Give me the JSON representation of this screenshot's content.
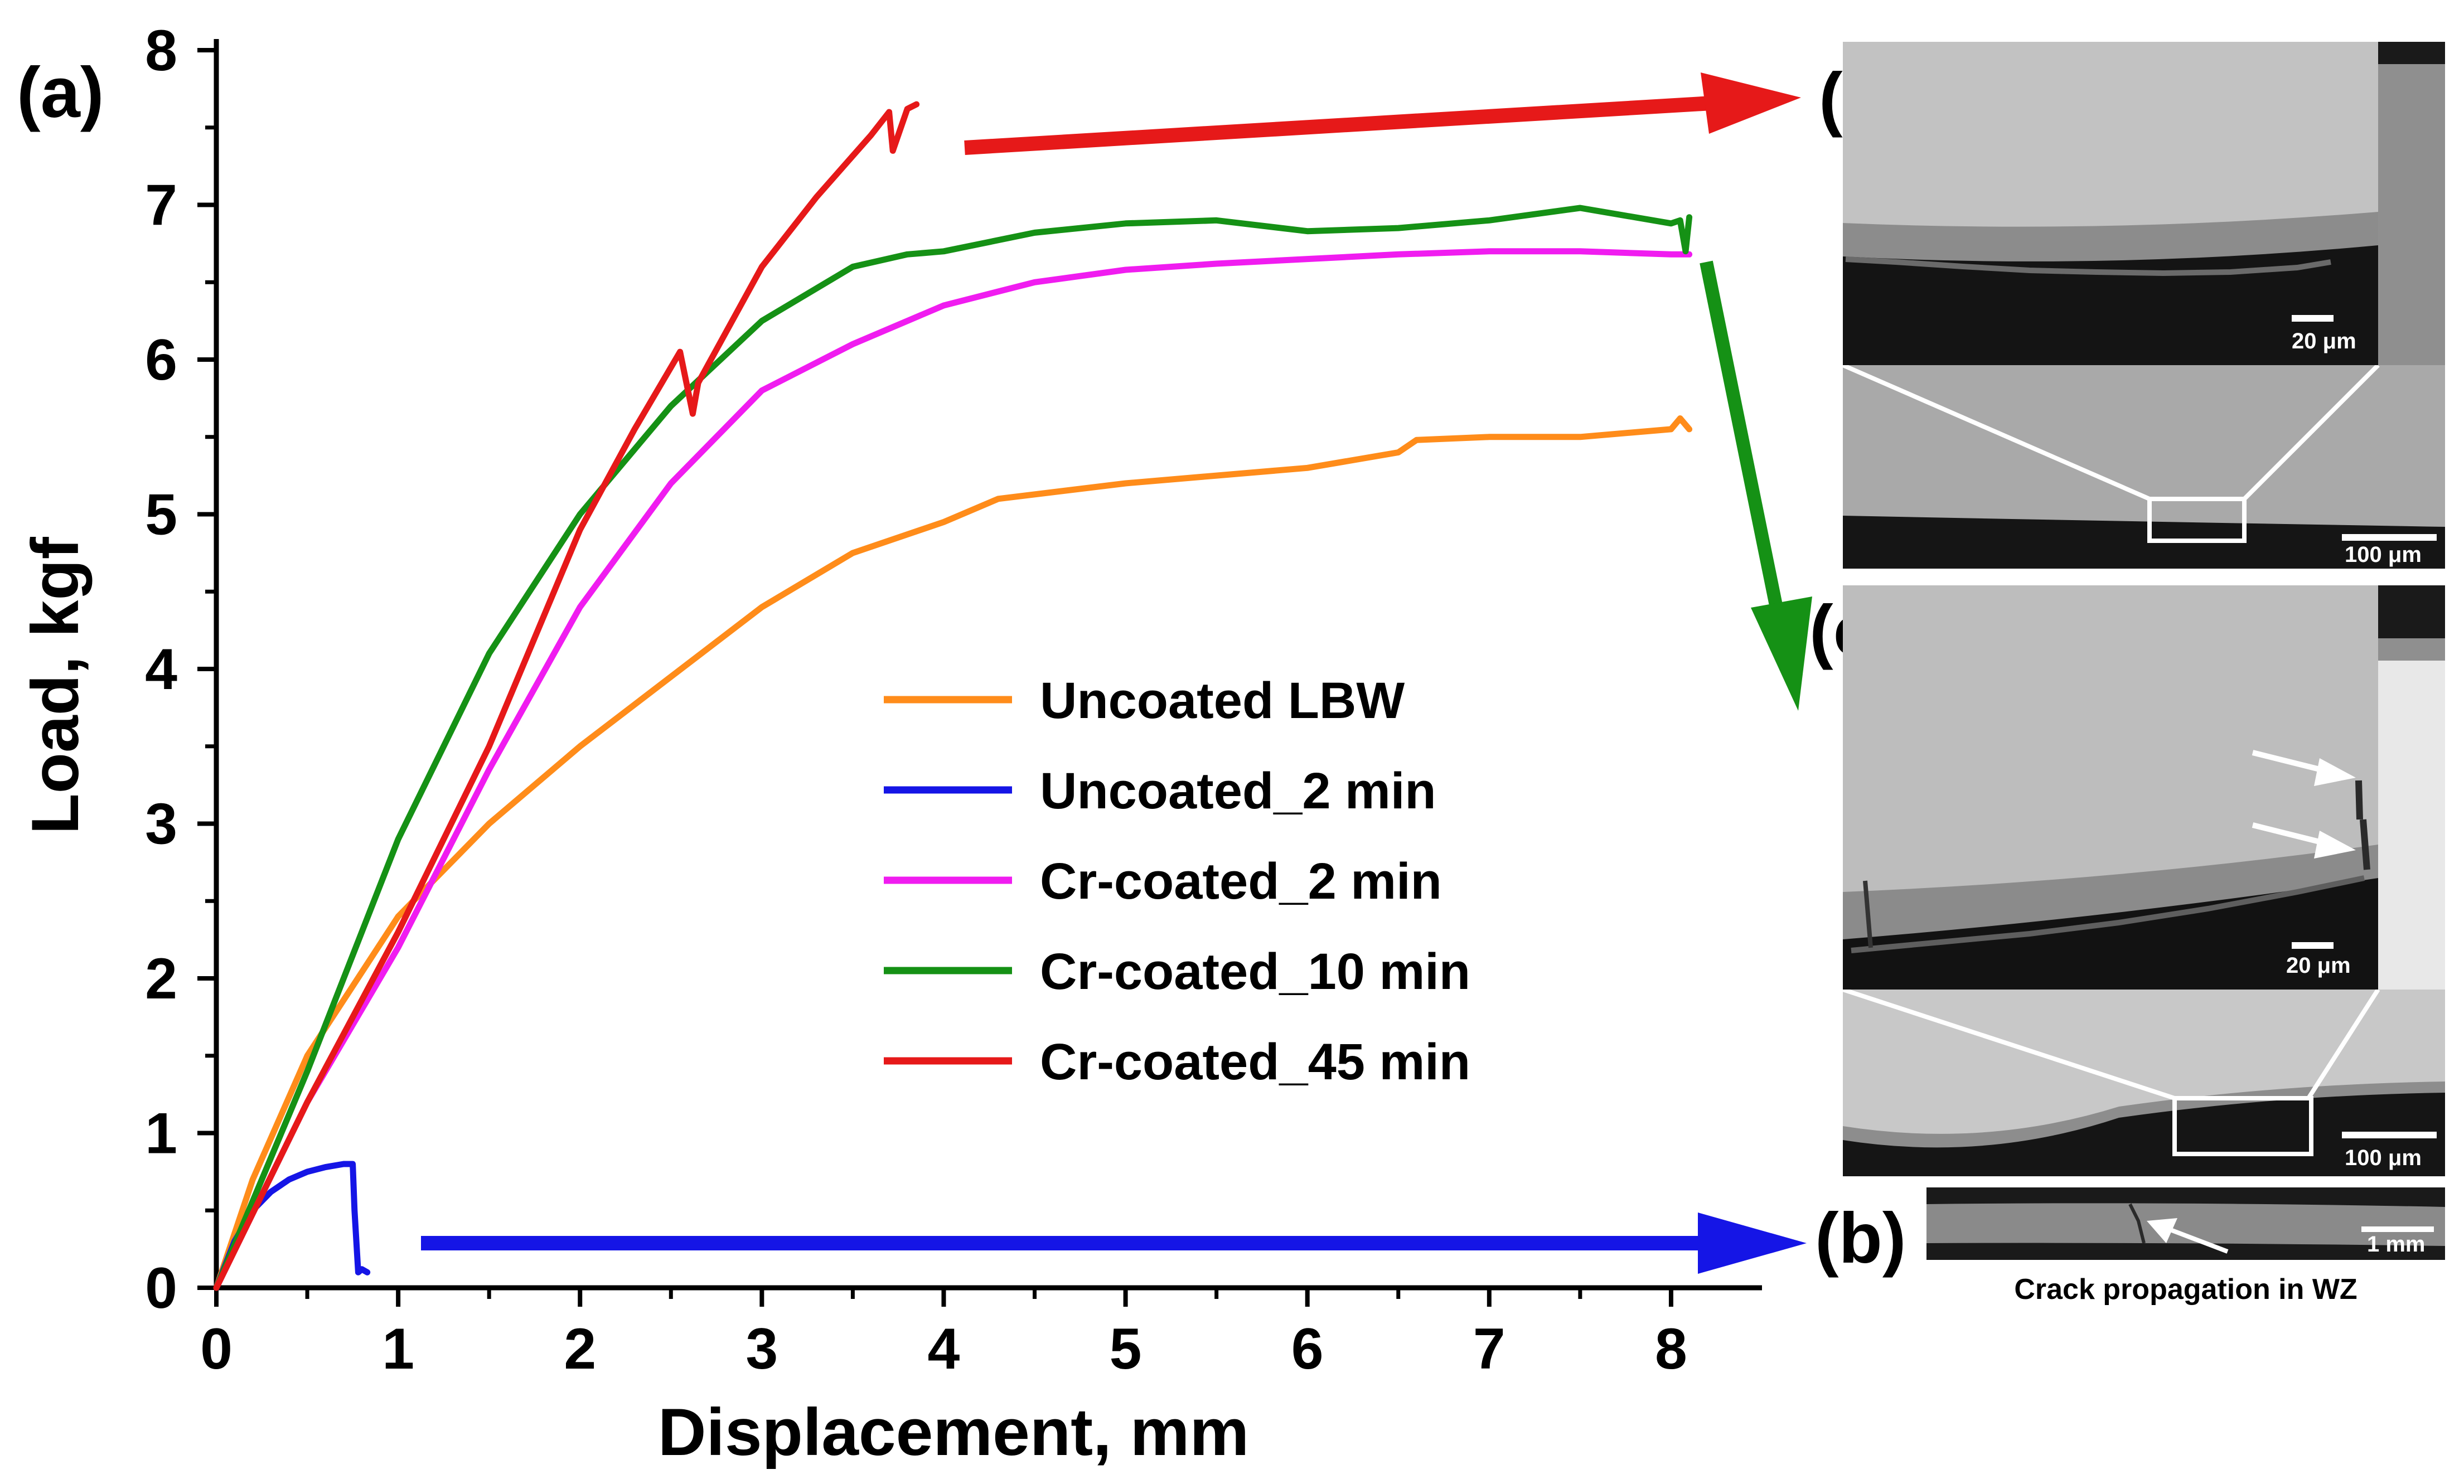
{
  "chart_data": {
    "type": "line",
    "panel_label": "(a)",
    "xlabel": "Displacement, mm",
    "ylabel": "Load, kgf",
    "xlim": [
      0,
      8.5
    ],
    "ylim": [
      0,
      8
    ],
    "x_ticks": [
      0,
      1,
      2,
      3,
      4,
      5,
      6,
      7,
      8
    ],
    "y_ticks": [
      0,
      1,
      2,
      3,
      4,
      5,
      6,
      7,
      8
    ],
    "x_tick_labels": [
      "0",
      "1",
      "2",
      "3",
      "4",
      "5",
      "6",
      "7",
      "8"
    ],
    "y_tick_labels": [
      "0",
      "1",
      "2",
      "3",
      "4",
      "5",
      "6",
      "7",
      "8"
    ],
    "grid": false,
    "legend_position": "center",
    "series": [
      {
        "name": "Uncoated LBW",
        "color": "#FF8C1A",
        "x": [
          0,
          0.2,
          0.5,
          1.0,
          1.5,
          2.0,
          2.5,
          3.0,
          3.5,
          4.0,
          4.3,
          5.0,
          5.5,
          6.0,
          6.5,
          6.6,
          7.0,
          7.5,
          8.0,
          8.05,
          8.1
        ],
        "y": [
          0,
          0.7,
          1.5,
          2.4,
          3.0,
          3.5,
          3.95,
          4.4,
          4.75,
          4.95,
          5.1,
          5.2,
          5.25,
          5.3,
          5.4,
          5.48,
          5.5,
          5.5,
          5.55,
          5.62,
          5.55
        ]
      },
      {
        "name": "Uncoated_2 min",
        "color": "#1515E6",
        "x": [
          0,
          0.1,
          0.2,
          0.3,
          0.4,
          0.5,
          0.6,
          0.7,
          0.75,
          0.76,
          0.78,
          0.8,
          0.83
        ],
        "y": [
          0,
          0.3,
          0.5,
          0.62,
          0.7,
          0.75,
          0.78,
          0.8,
          0.8,
          0.5,
          0.1,
          0.12,
          0.1
        ]
      },
      {
        "name": "Cr-coated_2 min",
        "color": "#F01CF0",
        "x": [
          0,
          0.5,
          1.0,
          1.5,
          2.0,
          2.5,
          3.0,
          3.5,
          4.0,
          4.5,
          5.0,
          5.5,
          6.0,
          6.5,
          7.0,
          7.5,
          8.0,
          8.1
        ],
        "y": [
          0,
          1.2,
          2.2,
          3.35,
          4.4,
          5.2,
          5.8,
          6.1,
          6.35,
          6.5,
          6.58,
          6.62,
          6.65,
          6.68,
          6.7,
          6.7,
          6.68,
          6.68
        ]
      },
      {
        "name": "Cr-coated_10 min",
        "color": "#159115",
        "x": [
          0,
          0.5,
          1.0,
          1.5,
          2.0,
          2.5,
          3.0,
          3.5,
          3.8,
          4.0,
          4.5,
          5.0,
          5.5,
          6.0,
          6.5,
          7.0,
          7.5,
          8.0,
          8.05,
          8.08,
          8.1
        ],
        "y": [
          0,
          1.4,
          2.9,
          4.1,
          5.0,
          5.7,
          6.25,
          6.6,
          6.68,
          6.7,
          6.82,
          6.88,
          6.9,
          6.83,
          6.85,
          6.9,
          6.98,
          6.88,
          6.9,
          6.7,
          6.92
        ]
      },
      {
        "name": "Cr-coated_45 min",
        "color": "#E61919",
        "x": [
          0,
          0.5,
          1.0,
          1.5,
          2.0,
          2.3,
          2.55,
          2.62,
          2.65,
          3.0,
          3.3,
          3.6,
          3.7,
          3.72,
          3.8,
          3.85
        ],
        "y": [
          0,
          1.2,
          2.3,
          3.5,
          4.9,
          5.55,
          6.05,
          5.65,
          5.85,
          6.6,
          7.05,
          7.45,
          7.6,
          7.35,
          7.62,
          7.65
        ]
      }
    ]
  },
  "insets": {
    "d": {
      "letter": "(d)",
      "scale_top": "20 μm",
      "scale_bottom": "100 μm"
    },
    "c": {
      "letter": "(c)",
      "scale_top": "20 μm",
      "scale_bottom": "100 μm"
    },
    "b": {
      "letter": "(b)",
      "scale": "1 mm",
      "caption": "Crack propagation in WZ"
    }
  },
  "arrow_colors": {
    "red": "#E61919",
    "green": "#159115",
    "blue": "#1515E6"
  }
}
